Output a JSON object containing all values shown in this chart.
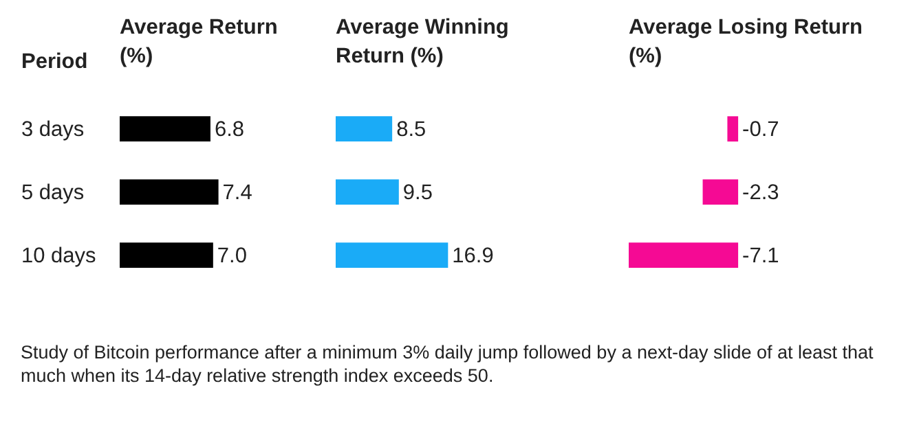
{
  "chart_data": [
    {
      "type": "bar",
      "orientation": "horizontal",
      "title": "Average Return (%)",
      "ylabel": "Period",
      "categories": [
        "3 days",
        "5 days",
        "10 days"
      ],
      "values": [
        6.8,
        7.4,
        7.0
      ],
      "value_labels": [
        "6.8",
        "7.4",
        "7.0"
      ],
      "color": "#000000",
      "tick_labels": "y"
    },
    {
      "type": "bar",
      "orientation": "horizontal",
      "title": "Average Winning Return (%)",
      "categories": [
        null,
        null,
        null
      ],
      "values": [
        8.5,
        9.5,
        16.9
      ],
      "value_labels": [
        "8.5",
        "9.5",
        "16.9"
      ],
      "color": "#1aabf7",
      "tick_labels": false
    },
    {
      "type": "bar",
      "orientation": "horizontal",
      "title": "Average Losing Return (%)",
      "categories": [
        null,
        null,
        null
      ],
      "values": [
        -0.7,
        -2.3,
        -7.1
      ],
      "value_labels": [
        "-0.7",
        "-2.3",
        "-7.1"
      ],
      "color": "#f50a94",
      "tick_labels": false,
      "annotations": [
        "Study of Bitcoin performance after a minimum 3% daily jump followed by a next-day slide of at least that much when its 14-day relative strength index exceeds 50."
      ]
    }
  ]
}
